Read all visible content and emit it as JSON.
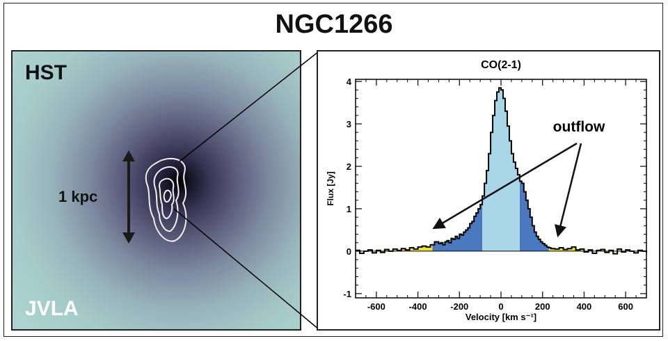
{
  "figure": {
    "title": "NGC1266",
    "image_panel": {
      "top_label": "HST",
      "bottom_label": "JVLA",
      "scale_label": "1 kpc"
    }
  },
  "colors": {
    "light_fill": "#a9d6e6",
    "wing_fill": "#4a79c0",
    "yellow_fill": "#e8e13a",
    "line": "#000000"
  },
  "chart_data": {
    "type": "line",
    "title": "CO(2-1)",
    "xlabel": "Velocity [km s⁻¹]",
    "ylabel": "Flux [Jy]",
    "xlim": [
      -700,
      700
    ],
    "ylim": [
      -1.1,
      4.05
    ],
    "xticks": [
      -600,
      -400,
      -200,
      0,
      200,
      400,
      600
    ],
    "xtick_labels": [
      "-600",
      "-400",
      "-200",
      "0",
      "200",
      "400",
      "600"
    ],
    "yticks": [
      -1,
      0,
      1,
      2,
      3,
      4
    ],
    "ytick_labels": [
      "-1",
      "0",
      "1",
      "2",
      "3",
      "4"
    ],
    "annotation": "outflow",
    "core_velocity_range": [
      -90,
      90
    ],
    "wing_velocity_range": [
      -330,
      230
    ],
    "series": [
      {
        "x": [
          -700,
          -680,
          -660,
          -640,
          -620,
          -600,
          -580,
          -560,
          -540,
          -520,
          -500,
          -480,
          -460,
          -440,
          -420,
          -400,
          -380,
          -360,
          -340,
          -320,
          -300,
          -290,
          -280,
          -270,
          -260,
          -250,
          -240,
          -230,
          -220,
          -210,
          -200,
          -190,
          -180,
          -170,
          -160,
          -150,
          -140,
          -130,
          -120,
          -110,
          -100,
          -90,
          -80,
          -70,
          -60,
          -50,
          -40,
          -30,
          -20,
          -10,
          0,
          10,
          20,
          30,
          40,
          50,
          60,
          70,
          80,
          90,
          100,
          110,
          120,
          130,
          140,
          150,
          160,
          170,
          180,
          190,
          200,
          210,
          220,
          230,
          240,
          260,
          280,
          300,
          320,
          340,
          360,
          380,
          400,
          420,
          440,
          460,
          480,
          500,
          520,
          540,
          560,
          580,
          600,
          620,
          640,
          660,
          680,
          700
        ],
        "y": [
          0.02,
          -0.05,
          0.0,
          0.03,
          -0.04,
          0.02,
          -0.03,
          0.04,
          0.0,
          0.05,
          0.02,
          0.06,
          0.03,
          0.08,
          0.05,
          0.1,
          0.12,
          0.1,
          0.15,
          0.22,
          0.18,
          0.2,
          0.15,
          0.22,
          0.25,
          0.2,
          0.3,
          0.28,
          0.35,
          0.3,
          0.4,
          0.38,
          0.45,
          0.5,
          0.55,
          0.65,
          0.7,
          0.82,
          0.9,
          1.0,
          1.1,
          1.3,
          1.6,
          1.9,
          2.3,
          2.8,
          3.2,
          3.55,
          3.75,
          3.85,
          3.8,
          3.6,
          3.3,
          2.95,
          2.6,
          2.3,
          2.1,
          1.95,
          1.8,
          1.65,
          1.6,
          1.4,
          1.2,
          1.0,
          0.8,
          0.6,
          0.45,
          0.35,
          0.28,
          0.22,
          0.18,
          0.14,
          0.1,
          0.08,
          0.06,
          0.05,
          0.08,
          0.04,
          0.06,
          0.1,
          0.03,
          0.05,
          -0.02,
          0.03,
          -0.05,
          0.02,
          0.04,
          -0.03,
          0.02,
          -0.06,
          0.05,
          -0.02,
          0.03,
          0.0,
          -0.04,
          0.02,
          0.0,
          -0.03
        ]
      }
    ]
  }
}
